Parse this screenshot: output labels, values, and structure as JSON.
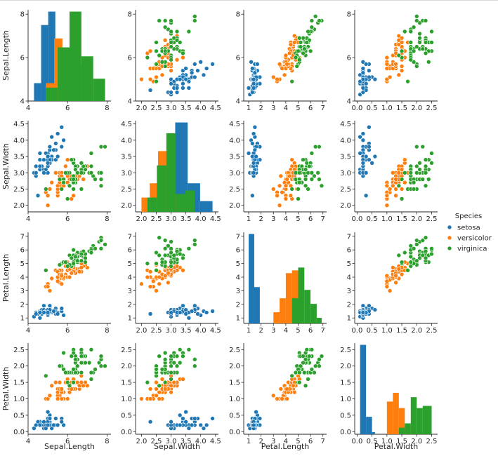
{
  "chart_data": {
    "type": "scatter",
    "title": "",
    "variables": [
      "Sepal.Length",
      "Sepal.Width",
      "Petal.Length",
      "Petal.Width"
    ],
    "ranges": [
      [
        4.0,
        8.2
      ],
      [
        1.8,
        4.6
      ],
      [
        0.6,
        7.3
      ],
      [
        -0.08,
        2.7
      ]
    ],
    "ticks": [
      [
        4,
        6,
        8
      ],
      [
        2.0,
        2.5,
        3.0,
        3.5,
        4.0,
        4.5
      ],
      [
        1,
        2,
        3,
        4,
        5,
        6,
        7
      ],
      [
        0.0,
        0.5,
        1.0,
        1.5,
        2.0,
        2.5
      ]
    ],
    "tick_labels": [
      [
        "4",
        "6",
        "8"
      ],
      [
        "2.0",
        "2.5",
        "3.0",
        "3.5",
        "4.0",
        "4.5"
      ],
      [
        "1",
        "2",
        "3",
        "4",
        "5",
        "6",
        "7"
      ],
      [
        "0.0",
        "0.5",
        "1.0",
        "1.5",
        "2.0",
        "2.5"
      ]
    ],
    "grid": false,
    "legend": {
      "title": "Species",
      "placement": "right",
      "entries": [
        {
          "label": "setosa",
          "color": "#1f77b4"
        },
        {
          "label": "versicolor",
          "color": "#ff7f0e"
        },
        {
          "label": "virginica",
          "color": "#2ca02c"
        }
      ]
    },
    "species": [
      "setosa",
      "versicolor",
      "virginica"
    ],
    "colors": [
      "#1f77b4",
      "#ff7f0e",
      "#2ca02c"
    ],
    "histograms": [
      {
        "variable": "Sepal.Length",
        "series": [
          {
            "name": "setosa",
            "edges": [
              4.3,
              4.66,
              5.02,
              5.38,
              5.74,
              6.1
            ],
            "counts": [
              4,
              17,
              20,
              8,
              1
            ]
          },
          {
            "name": "versicolor",
            "edges": [
              4.9,
              5.32,
              5.74,
              6.16,
              6.58,
              7.0
            ],
            "counts": [
              4,
              14,
              12,
              12,
              8
            ]
          },
          {
            "name": "virginica",
            "edges": [
              4.9,
              5.5,
              6.1,
              6.7,
              7.3,
              7.9
            ],
            "counts": [
              3,
              12,
              20,
              10,
              5
            ]
          }
        ]
      },
      {
        "variable": "Sepal.Width",
        "series": [
          {
            "name": "setosa",
            "edges": [
              2.3,
              2.72,
              3.14,
              3.56,
              3.98,
              4.4
            ],
            "counts": [
              1,
              13,
              25,
              8,
              3
            ]
          },
          {
            "name": "versicolor",
            "edges": [
              2.0,
              2.28,
              2.56,
              2.84,
              3.12,
              3.4
            ],
            "counts": [
              4,
              8,
              17,
              16,
              5
            ]
          },
          {
            "name": "virginica",
            "edges": [
              2.2,
              2.52,
              2.84,
              3.16,
              3.48,
              3.8
            ],
            "counts": [
              4,
              13,
              22,
              5,
              6
            ]
          }
        ]
      },
      {
        "variable": "Petal.Length",
        "series": [
          {
            "name": "setosa",
            "edges": [
              1.0,
              1.45,
              1.9
            ],
            "counts": [
              32,
              13
            ]
          },
          {
            "name": "versicolor",
            "edges": [
              3.0,
              3.5,
              4.0,
              4.5,
              5.1
            ],
            "counts": [
              4,
              9,
              18,
              19
            ]
          },
          {
            "name": "virginica",
            "edges": [
              4.5,
              5.0,
              5.5,
              6.0,
              6.5,
              6.9
            ],
            "counts": [
              9,
              20,
              12,
              7,
              2
            ]
          }
        ]
      },
      {
        "variable": "Petal.Width",
        "series": [
          {
            "name": "setosa",
            "edges": [
              0.1,
              0.3,
              0.5,
              0.6
            ],
            "counts": [
              41,
              8,
              1
            ]
          },
          {
            "name": "versicolor",
            "edges": [
              1.0,
              1.2,
              1.4,
              1.6,
              1.8
            ],
            "counts": [
              15,
              19,
              12,
              4
            ]
          },
          {
            "name": "virginica",
            "edges": [
              1.4,
              1.6,
              1.8,
              2.0,
              2.2,
              2.5
            ],
            "counts": [
              3,
              5,
              17,
              12,
              13
            ]
          }
        ]
      }
    ],
    "series": [
      {
        "name": "setosa",
        "points": [
          [
            5.1,
            3.5,
            1.4,
            0.2
          ],
          [
            4.9,
            3.0,
            1.4,
            0.2
          ],
          [
            4.7,
            3.2,
            1.3,
            0.2
          ],
          [
            4.6,
            3.1,
            1.5,
            0.2
          ],
          [
            5.0,
            3.6,
            1.4,
            0.2
          ],
          [
            5.4,
            3.9,
            1.7,
            0.4
          ],
          [
            4.6,
            3.4,
            1.4,
            0.3
          ],
          [
            5.0,
            3.4,
            1.5,
            0.2
          ],
          [
            4.4,
            2.9,
            1.4,
            0.2
          ],
          [
            4.9,
            3.1,
            1.5,
            0.1
          ],
          [
            5.4,
            3.7,
            1.5,
            0.2
          ],
          [
            4.8,
            3.4,
            1.6,
            0.2
          ],
          [
            4.8,
            3.0,
            1.4,
            0.1
          ],
          [
            4.3,
            3.0,
            1.1,
            0.1
          ],
          [
            5.8,
            4.0,
            1.2,
            0.2
          ],
          [
            5.7,
            4.4,
            1.5,
            0.4
          ],
          [
            5.4,
            3.9,
            1.3,
            0.4
          ],
          [
            5.1,
            3.5,
            1.4,
            0.3
          ],
          [
            5.7,
            3.8,
            1.7,
            0.3
          ],
          [
            5.1,
            3.8,
            1.5,
            0.3
          ],
          [
            5.4,
            3.4,
            1.7,
            0.2
          ],
          [
            5.1,
            3.7,
            1.5,
            0.4
          ],
          [
            4.6,
            3.6,
            1.0,
            0.2
          ],
          [
            5.1,
            3.3,
            1.7,
            0.5
          ],
          [
            4.8,
            3.4,
            1.9,
            0.2
          ],
          [
            5.0,
            3.0,
            1.6,
            0.2
          ],
          [
            5.0,
            3.4,
            1.6,
            0.4
          ],
          [
            5.2,
            3.5,
            1.5,
            0.2
          ],
          [
            5.2,
            3.4,
            1.4,
            0.2
          ],
          [
            4.7,
            3.2,
            1.6,
            0.2
          ],
          [
            4.8,
            3.1,
            1.6,
            0.2
          ],
          [
            5.4,
            3.4,
            1.5,
            0.4
          ],
          [
            5.2,
            4.1,
            1.5,
            0.1
          ],
          [
            5.5,
            4.2,
            1.4,
            0.2
          ],
          [
            4.9,
            3.1,
            1.5,
            0.2
          ],
          [
            5.0,
            3.2,
            1.2,
            0.2
          ],
          [
            5.5,
            3.5,
            1.3,
            0.2
          ],
          [
            4.9,
            3.6,
            1.4,
            0.1
          ],
          [
            4.4,
            3.0,
            1.3,
            0.2
          ],
          [
            5.1,
            3.4,
            1.5,
            0.2
          ],
          [
            5.0,
            3.5,
            1.3,
            0.3
          ],
          [
            4.5,
            2.3,
            1.3,
            0.3
          ],
          [
            4.4,
            3.2,
            1.3,
            0.2
          ],
          [
            5.0,
            3.5,
            1.6,
            0.6
          ],
          [
            5.1,
            3.8,
            1.9,
            0.4
          ],
          [
            4.8,
            3.0,
            1.4,
            0.3
          ],
          [
            5.1,
            3.8,
            1.6,
            0.2
          ],
          [
            4.6,
            3.2,
            1.4,
            0.2
          ],
          [
            5.3,
            3.7,
            1.5,
            0.2
          ],
          [
            5.0,
            3.3,
            1.4,
            0.2
          ]
        ]
      },
      {
        "name": "versicolor",
        "points": [
          [
            7.0,
            3.2,
            4.7,
            1.4
          ],
          [
            6.4,
            3.2,
            4.5,
            1.5
          ],
          [
            6.9,
            3.1,
            4.9,
            1.5
          ],
          [
            5.5,
            2.3,
            4.0,
            1.3
          ],
          [
            6.5,
            2.8,
            4.6,
            1.5
          ],
          [
            5.7,
            2.8,
            4.5,
            1.3
          ],
          [
            6.3,
            3.3,
            4.7,
            1.6
          ],
          [
            4.9,
            2.4,
            3.3,
            1.0
          ],
          [
            6.6,
            2.9,
            4.6,
            1.3
          ],
          [
            5.2,
            2.7,
            3.9,
            1.4
          ],
          [
            5.0,
            2.0,
            3.5,
            1.0
          ],
          [
            5.9,
            3.0,
            4.2,
            1.5
          ],
          [
            6.0,
            2.2,
            4.0,
            1.0
          ],
          [
            6.1,
            2.9,
            4.7,
            1.4
          ],
          [
            5.6,
            2.9,
            3.6,
            1.3
          ],
          [
            6.7,
            3.1,
            4.4,
            1.4
          ],
          [
            5.6,
            3.0,
            4.5,
            1.5
          ],
          [
            5.8,
            2.7,
            4.1,
            1.0
          ],
          [
            6.2,
            2.2,
            4.5,
            1.5
          ],
          [
            5.6,
            2.5,
            3.9,
            1.1
          ],
          [
            5.9,
            3.2,
            4.8,
            1.8
          ],
          [
            6.1,
            2.8,
            4.0,
            1.3
          ],
          [
            6.3,
            2.5,
            4.9,
            1.5
          ],
          [
            6.1,
            2.8,
            4.7,
            1.2
          ],
          [
            6.4,
            2.9,
            4.3,
            1.3
          ],
          [
            6.6,
            3.0,
            4.4,
            1.4
          ],
          [
            6.8,
            2.8,
            4.8,
            1.4
          ],
          [
            6.7,
            3.0,
            5.0,
            1.7
          ],
          [
            6.0,
            2.9,
            4.5,
            1.5
          ],
          [
            5.7,
            2.6,
            3.5,
            1.0
          ],
          [
            5.5,
            2.4,
            3.8,
            1.1
          ],
          [
            5.5,
            2.4,
            3.7,
            1.0
          ],
          [
            5.8,
            2.7,
            3.9,
            1.2
          ],
          [
            6.0,
            2.7,
            5.1,
            1.6
          ],
          [
            5.4,
            3.0,
            4.5,
            1.5
          ],
          [
            6.0,
            3.4,
            4.5,
            1.6
          ],
          [
            6.7,
            3.1,
            4.7,
            1.5
          ],
          [
            6.3,
            2.3,
            4.4,
            1.3
          ],
          [
            5.6,
            3.0,
            4.1,
            1.3
          ],
          [
            5.5,
            2.5,
            4.0,
            1.3
          ],
          [
            5.5,
            2.6,
            4.4,
            1.2
          ],
          [
            6.1,
            3.0,
            4.6,
            1.4
          ],
          [
            5.8,
            2.6,
            4.0,
            1.2
          ],
          [
            5.0,
            2.3,
            3.3,
            1.0
          ],
          [
            5.6,
            2.7,
            4.2,
            1.3
          ],
          [
            5.7,
            3.0,
            4.2,
            1.2
          ],
          [
            5.7,
            2.9,
            4.2,
            1.3
          ],
          [
            6.2,
            2.9,
            4.3,
            1.3
          ],
          [
            5.1,
            2.5,
            3.0,
            1.1
          ],
          [
            5.7,
            2.8,
            4.1,
            1.3
          ]
        ]
      },
      {
        "name": "virginica",
        "points": [
          [
            6.3,
            3.3,
            6.0,
            2.5
          ],
          [
            5.8,
            2.7,
            5.1,
            1.9
          ],
          [
            7.1,
            3.0,
            5.9,
            2.1
          ],
          [
            6.3,
            2.9,
            5.6,
            1.8
          ],
          [
            6.5,
            3.0,
            5.8,
            2.2
          ],
          [
            7.6,
            3.0,
            6.6,
            2.1
          ],
          [
            4.9,
            2.5,
            4.5,
            1.7
          ],
          [
            7.3,
            2.9,
            6.3,
            1.8
          ],
          [
            6.7,
            2.5,
            5.8,
            1.8
          ],
          [
            7.2,
            3.6,
            6.1,
            2.5
          ],
          [
            6.5,
            3.2,
            5.1,
            2.0
          ],
          [
            6.4,
            2.7,
            5.3,
            1.9
          ],
          [
            6.8,
            3.0,
            5.5,
            2.1
          ],
          [
            5.7,
            2.5,
            5.0,
            2.0
          ],
          [
            5.8,
            2.8,
            5.1,
            2.4
          ],
          [
            6.4,
            3.2,
            5.3,
            2.3
          ],
          [
            6.5,
            3.0,
            5.5,
            1.8
          ],
          [
            7.7,
            3.8,
            6.7,
            2.2
          ],
          [
            7.7,
            2.6,
            6.9,
            2.3
          ],
          [
            6.0,
            2.2,
            5.0,
            1.5
          ],
          [
            6.9,
            3.2,
            5.7,
            2.3
          ],
          [
            5.6,
            2.8,
            4.9,
            2.0
          ],
          [
            7.7,
            2.8,
            6.7,
            2.0
          ],
          [
            6.3,
            2.7,
            4.9,
            1.8
          ],
          [
            6.7,
            3.3,
            5.7,
            2.1
          ],
          [
            7.2,
            3.2,
            6.0,
            1.8
          ],
          [
            6.2,
            2.8,
            4.8,
            1.8
          ],
          [
            6.1,
            3.0,
            4.9,
            1.8
          ],
          [
            6.4,
            2.8,
            5.6,
            2.1
          ],
          [
            7.2,
            3.0,
            5.8,
            1.6
          ],
          [
            7.4,
            2.8,
            6.1,
            1.9
          ],
          [
            7.9,
            3.8,
            6.4,
            2.0
          ],
          [
            6.4,
            2.8,
            5.6,
            2.2
          ],
          [
            6.3,
            2.8,
            5.1,
            1.5
          ],
          [
            6.1,
            2.6,
            5.6,
            1.4
          ],
          [
            7.7,
            3.0,
            6.1,
            2.3
          ],
          [
            6.3,
            3.4,
            5.6,
            2.4
          ],
          [
            6.4,
            3.1,
            5.5,
            1.8
          ],
          [
            6.0,
            3.0,
            4.8,
            1.8
          ],
          [
            6.9,
            3.1,
            5.4,
            2.1
          ],
          [
            6.7,
            3.1,
            5.6,
            2.4
          ],
          [
            6.9,
            3.1,
            5.1,
            2.3
          ],
          [
            5.8,
            2.7,
            5.1,
            1.9
          ],
          [
            6.8,
            3.2,
            5.9,
            2.3
          ],
          [
            6.7,
            3.3,
            5.7,
            2.5
          ],
          [
            6.7,
            3.0,
            5.2,
            2.3
          ],
          [
            6.3,
            2.5,
            5.0,
            1.9
          ],
          [
            6.5,
            3.0,
            5.2,
            2.0
          ],
          [
            6.2,
            3.4,
            5.4,
            2.3
          ],
          [
            5.9,
            3.0,
            5.1,
            1.8
          ]
        ]
      }
    ]
  }
}
